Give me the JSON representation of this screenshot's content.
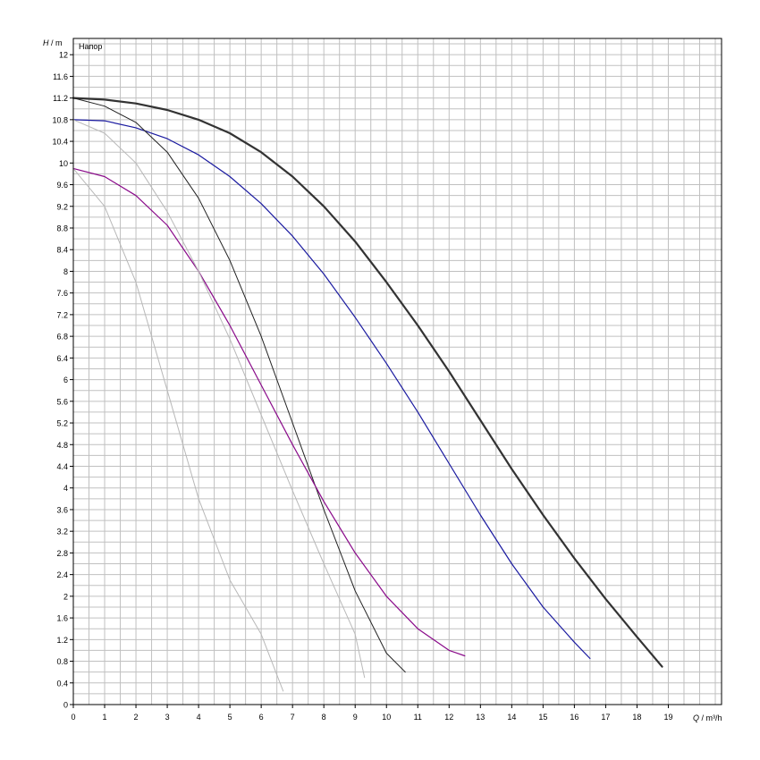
{
  "chart_data": {
    "type": "line",
    "title": "Напор",
    "ylabel_var": "H",
    "ylabel_unit": "m",
    "xlabel_var": "Q",
    "xlabel_unit": "m³/h",
    "xlim": [
      0,
      20.7
    ],
    "ylim": [
      0,
      12.3
    ],
    "x_ticks": [
      0,
      1,
      2,
      3,
      4,
      5,
      6,
      7,
      8,
      9,
      10,
      11,
      12,
      13,
      14,
      15,
      16,
      17,
      18,
      19
    ],
    "y_ticks": [
      0,
      0.4,
      0.8,
      1.2,
      1.6,
      2,
      2.4,
      2.8,
      3.2,
      3.6,
      4,
      4.4,
      4.8,
      5.2,
      5.6,
      6,
      6.4,
      6.8,
      7.2,
      7.6,
      8,
      8.4,
      8.8,
      9.2,
      9.6,
      10,
      10.4,
      10.8,
      11.2,
      11.6,
      12
    ],
    "grid": true,
    "colors": {
      "grid": "#c0c0c0",
      "axis": "#000000",
      "curve_max": "#333333",
      "curve_blue": "#1a1aa0",
      "curve_dark": "#222222",
      "curve_purple": "#8a0a8a",
      "curve_light": "#b8b8b8"
    },
    "series": [
      {
        "id": "curve-max",
        "color_key": "curve_max",
        "width": 2.2,
        "points": [
          [
            0,
            11.2
          ],
          [
            1,
            11.17
          ],
          [
            2,
            11.1
          ],
          [
            3,
            10.98
          ],
          [
            4,
            10.8
          ],
          [
            5,
            10.55
          ],
          [
            6,
            10.2
          ],
          [
            7,
            9.75
          ],
          [
            8,
            9.2
          ],
          [
            9,
            8.55
          ],
          [
            10,
            7.8
          ],
          [
            11,
            7.0
          ],
          [
            12,
            6.15
          ],
          [
            13,
            5.25
          ],
          [
            14,
            4.35
          ],
          [
            15,
            3.5
          ],
          [
            16,
            2.7
          ],
          [
            17,
            1.95
          ],
          [
            18,
            1.25
          ],
          [
            18.8,
            0.7
          ]
        ]
      },
      {
        "id": "curve-blue",
        "color_key": "curve_blue",
        "width": 1.2,
        "points": [
          [
            0,
            10.8
          ],
          [
            1,
            10.78
          ],
          [
            2,
            10.65
          ],
          [
            3,
            10.45
          ],
          [
            4,
            10.15
          ],
          [
            5,
            9.75
          ],
          [
            6,
            9.25
          ],
          [
            7,
            8.65
          ],
          [
            8,
            7.95
          ],
          [
            9,
            7.15
          ],
          [
            10,
            6.3
          ],
          [
            11,
            5.4
          ],
          [
            12,
            4.45
          ],
          [
            13,
            3.5
          ],
          [
            14,
            2.6
          ],
          [
            15,
            1.8
          ],
          [
            16,
            1.15
          ],
          [
            16.5,
            0.85
          ]
        ]
      },
      {
        "id": "curve-dark",
        "color_key": "curve_dark",
        "width": 1.0,
        "points": [
          [
            0,
            11.2
          ],
          [
            1,
            11.05
          ],
          [
            2,
            10.75
          ],
          [
            3,
            10.2
          ],
          [
            4,
            9.35
          ],
          [
            5,
            8.2
          ],
          [
            6,
            6.8
          ],
          [
            7,
            5.2
          ],
          [
            8,
            3.6
          ],
          [
            9,
            2.1
          ],
          [
            10,
            0.95
          ],
          [
            10.6,
            0.6
          ]
        ]
      },
      {
        "id": "curve-purple",
        "color_key": "curve_purple",
        "width": 1.2,
        "points": [
          [
            0,
            9.9
          ],
          [
            1,
            9.75
          ],
          [
            2,
            9.4
          ],
          [
            3,
            8.85
          ],
          [
            4,
            8.0
          ],
          [
            5,
            7.0
          ],
          [
            6,
            5.9
          ],
          [
            7,
            4.8
          ],
          [
            8,
            3.75
          ],
          [
            9,
            2.8
          ],
          [
            10,
            2.0
          ],
          [
            11,
            1.4
          ],
          [
            12,
            1.0
          ],
          [
            12.5,
            0.9
          ]
        ]
      },
      {
        "id": "curve-light-1",
        "color_key": "curve_light",
        "width": 1.0,
        "points": [
          [
            0,
            10.8
          ],
          [
            1,
            10.55
          ],
          [
            2,
            10.0
          ],
          [
            3,
            9.1
          ],
          [
            4,
            8.0
          ],
          [
            5,
            6.75
          ],
          [
            6,
            5.35
          ],
          [
            7,
            3.95
          ],
          [
            8,
            2.6
          ],
          [
            9,
            1.3
          ],
          [
            9.3,
            0.5
          ]
        ]
      },
      {
        "id": "curve-light-2",
        "color_key": "curve_light",
        "width": 1.0,
        "points": [
          [
            0,
            9.9
          ],
          [
            1,
            9.2
          ],
          [
            2,
            7.8
          ],
          [
            3,
            5.8
          ],
          [
            4,
            3.8
          ],
          [
            5,
            2.3
          ],
          [
            6,
            1.3
          ],
          [
            6.7,
            0.25
          ]
        ]
      }
    ]
  }
}
